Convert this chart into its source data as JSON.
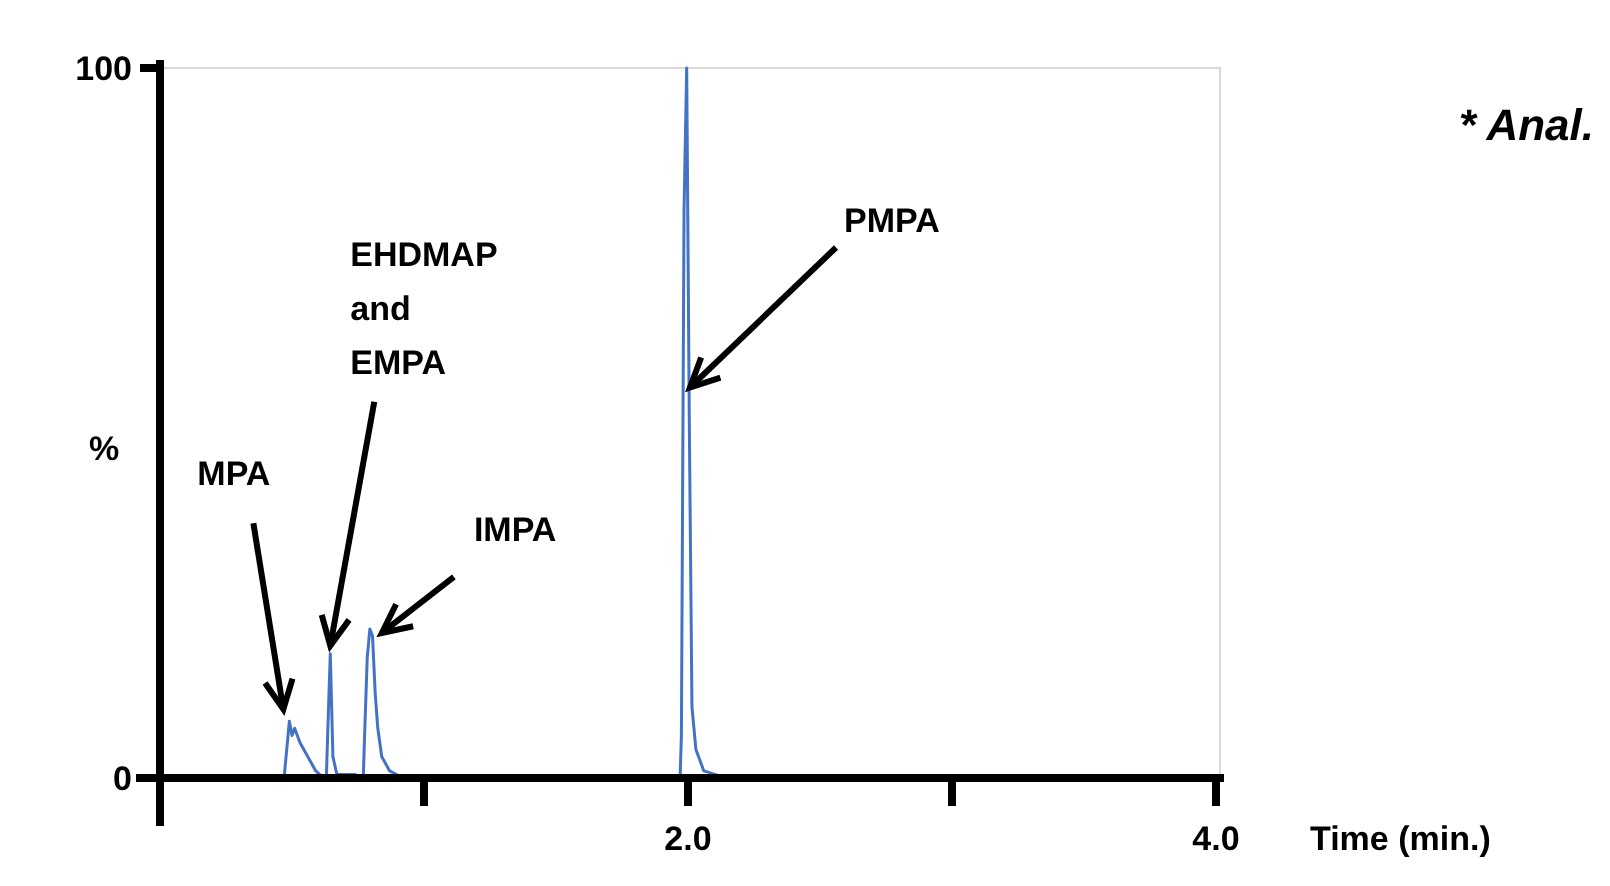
{
  "chart_data": {
    "type": "line",
    "xlabel": "Time (min.)",
    "ylabel": "%",
    "xlim": [
      0,
      4.0
    ],
    "ylim": [
      0,
      100
    ],
    "xticks": [
      {
        "value": 0,
        "label": null
      },
      {
        "value": 1,
        "label": null
      },
      {
        "value": 2,
        "label": "2.0"
      },
      {
        "value": 3,
        "label": null
      },
      {
        "value": 4,
        "label": "4.0"
      }
    ],
    "yticks": [
      0,
      100
    ],
    "grid": false,
    "marker": "none",
    "line_style": "solid",
    "series": [
      {
        "color": "#4472c4",
        "x": [
          0,
          0.47,
          0.48,
          0.49,
          0.5,
          0.51,
          0.53,
          0.56,
          0.59,
          0.62,
          0.63,
          0.635,
          0.645,
          0.655,
          0.67,
          0.74,
          0.755,
          0.77,
          0.775,
          0.785,
          0.795,
          0.805,
          0.815,
          0.825,
          0.84,
          0.87,
          0.92,
          1.97,
          1.975,
          1.985,
          1.995,
          2.005,
          2.015,
          2.03,
          2.06,
          2.12,
          2.2,
          4.0
        ],
        "values": [
          0,
          0,
          4,
          8,
          6,
          7,
          5,
          3,
          1,
          0,
          0,
          6,
          17.5,
          3,
          0.5,
          0.5,
          0,
          0,
          6,
          17,
          21,
          20,
          12,
          7,
          3,
          1,
          0,
          0,
          6,
          80,
          100,
          50,
          10,
          4,
          1,
          0.3,
          0,
          0
        ]
      }
    ],
    "annotations": [
      {
        "text": "MPA",
        "x": 0.49,
        "y": 8
      },
      {
        "text": "EHDMAP and EMPA",
        "x": 0.645,
        "y": 17.5
      },
      {
        "text": "IMPA",
        "x": 0.795,
        "y": 21
      },
      {
        "text": "PMPA",
        "x": 2.0,
        "y": 55
      },
      "* Anal."
    ]
  }
}
